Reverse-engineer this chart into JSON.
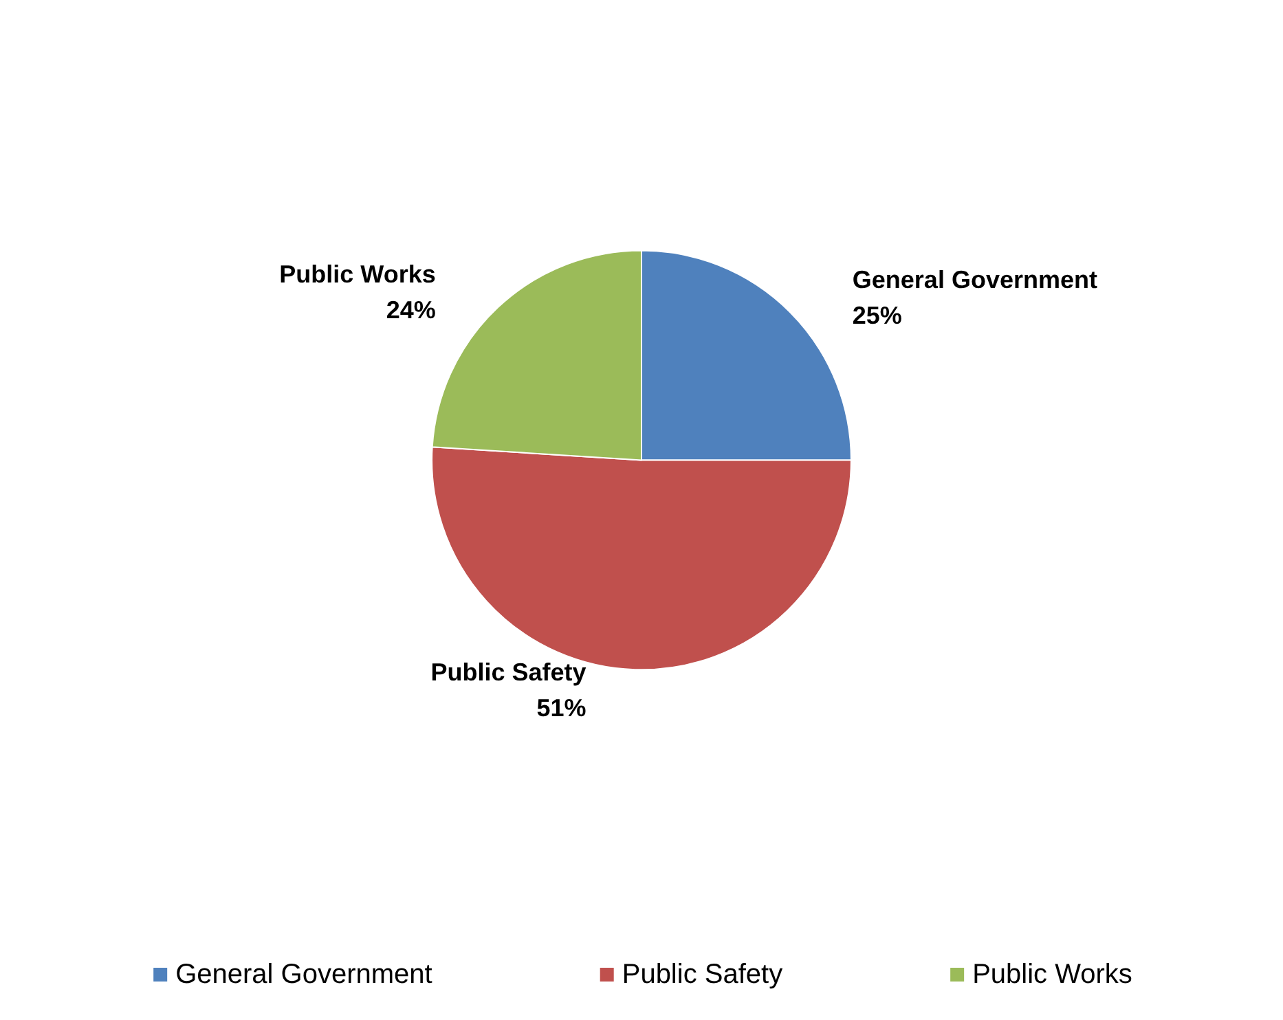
{
  "chart_data": {
    "type": "pie",
    "categories": [
      "General Government",
      "Public Safety",
      "Public Works"
    ],
    "values": [
      25,
      51,
      24
    ],
    "value_labels": [
      "25%",
      "51%",
      "24%"
    ],
    "colors": [
      "#4f81bd",
      "#c0504d",
      "#9bbb59"
    ],
    "legend": "bottom"
  }
}
